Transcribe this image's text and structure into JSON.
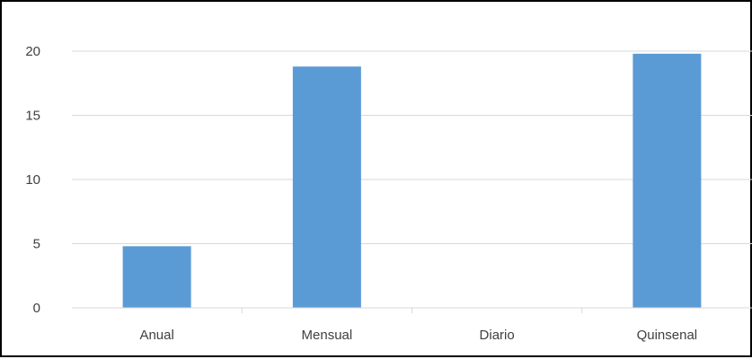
{
  "chart_data": {
    "type": "bar",
    "title": "",
    "xlabel": "",
    "ylabel": "",
    "categories": [
      "Anual",
      "Mensual",
      "Diario",
      "Quinsenal"
    ],
    "values": [
      4.8,
      18.8,
      0,
      19.8
    ],
    "ylim": [
      0,
      20
    ],
    "yticks": [
      0,
      5,
      10,
      15,
      20
    ],
    "grid": true,
    "legend": "none",
    "bar_color": "#5b9bd5",
    "grid_color": "#d9d9d9"
  }
}
